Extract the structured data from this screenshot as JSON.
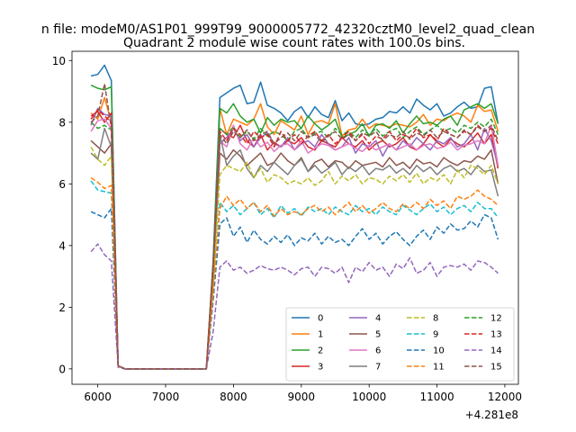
{
  "chart_data": {
    "type": "line",
    "suptitle": "n file: modeM0/AS1P01_999T99_9000005772_42320cztM0_level2_quad_clean",
    "title": "Quadrant 2 module wise count rates with 100.0s bins.",
    "xlabel": "",
    "ylabel": "",
    "offset_label": "+4.281e8",
    "xlim": [
      5620,
      12200
    ],
    "ylim": [
      -0.5,
      10.3
    ],
    "xticks": [
      6000,
      7000,
      8000,
      9000,
      10000,
      11000,
      12000
    ],
    "yticks": [
      0,
      2,
      4,
      6,
      8,
      10
    ],
    "x": [
      5900,
      6000,
      6100,
      6200,
      6300,
      6400,
      6500,
      6600,
      6700,
      6800,
      6900,
      7000,
      7100,
      7200,
      7300,
      7400,
      7500,
      7600,
      7700,
      7800,
      7900,
      8000,
      8100,
      8200,
      8300,
      8400,
      8500,
      8600,
      8700,
      8800,
      8900,
      9000,
      9100,
      9200,
      9300,
      9400,
      9500,
      9600,
      9700,
      9800,
      9900,
      10000,
      10100,
      10200,
      10300,
      10400,
      10500,
      10600,
      10700,
      10800,
      10900,
      11000,
      11100,
      11200,
      11300,
      11400,
      11500,
      11600,
      11700,
      11800,
      11900
    ],
    "legend_position": "lower right",
    "series": [
      {
        "name": "0",
        "color": "#1f77b4",
        "dash": "solid",
        "values": [
          9.5,
          9.55,
          9.85,
          9.35,
          0.1,
          0,
          0,
          0,
          0,
          0,
          0,
          0,
          0,
          0,
          0,
          0,
          0,
          0,
          3.5,
          8.8,
          8.95,
          9.1,
          9.2,
          8.6,
          8.65,
          9.3,
          8.55,
          8.45,
          8.3,
          8.05,
          8.35,
          8.5,
          8.15,
          8.5,
          8.25,
          8.15,
          8.7,
          8.05,
          8.3,
          7.95,
          7.9,
          7.95,
          8.1,
          8.15,
          8.35,
          8.3,
          8.5,
          8.3,
          8.75,
          8.55,
          8.4,
          8.6,
          8.2,
          8.3,
          8.5,
          8.65,
          8.45,
          8.5,
          9.1,
          9.15,
          7.95
        ]
      },
      {
        "name": "1",
        "color": "#ff7f0e",
        "dash": "solid",
        "values": [
          8.3,
          8.1,
          8.8,
          8.0,
          0.1,
          0,
          0,
          0,
          0,
          0,
          0,
          0,
          0,
          0,
          0,
          0,
          0,
          0,
          3.2,
          8.45,
          7.6,
          8.1,
          8.0,
          7.9,
          8.1,
          8.6,
          7.85,
          7.6,
          8.05,
          7.9,
          7.75,
          8.2,
          7.6,
          8.0,
          8.05,
          7.95,
          8.6,
          7.55,
          7.75,
          7.8,
          8.1,
          7.8,
          7.95,
          7.9,
          7.85,
          7.95,
          7.9,
          7.85,
          8.0,
          8.25,
          7.9,
          8.1,
          8.05,
          8.2,
          8.3,
          8.2,
          8.0,
          8.55,
          8.35,
          8.4,
          7.7
        ]
      },
      {
        "name": "2",
        "color": "#2ca02c",
        "dash": "solid",
        "values": [
          9.2,
          9.1,
          9.05,
          9.15,
          0.1,
          0,
          0,
          0,
          0,
          0,
          0,
          0,
          0,
          0,
          0,
          0,
          0,
          0,
          3.4,
          8.45,
          8.3,
          8.6,
          8.2,
          8.0,
          8.1,
          7.65,
          8.15,
          7.9,
          8.1,
          8.0,
          8.05,
          7.8,
          8.2,
          7.95,
          7.75,
          7.9,
          8.1,
          7.5,
          7.6,
          7.7,
          7.95,
          7.55,
          7.9,
          7.95,
          7.8,
          8.05,
          7.65,
          7.95,
          8.2,
          7.95,
          8.0,
          7.9,
          8.1,
          8.2,
          7.9,
          8.4,
          8.5,
          8.6,
          8.45,
          8.6,
          7.95
        ]
      },
      {
        "name": "3",
        "color": "#d62728",
        "dash": "solid",
        "values": [
          8.2,
          8.35,
          8.0,
          8.3,
          0.1,
          0,
          0,
          0,
          0,
          0,
          0,
          0,
          0,
          0,
          0,
          0,
          0,
          0,
          3.0,
          7.8,
          7.6,
          7.5,
          7.9,
          7.4,
          7.2,
          7.6,
          7.1,
          7.35,
          7.2,
          7.4,
          7.3,
          7.5,
          7.2,
          7.1,
          7.4,
          7.3,
          7.2,
          7.5,
          7.3,
          7.2,
          7.4,
          7.1,
          7.3,
          7.4,
          7.2,
          7.3,
          7.5,
          7.2,
          7.1,
          7.3,
          7.6,
          7.35,
          7.2,
          7.45,
          7.3,
          7.2,
          7.4,
          7.65,
          7.3,
          7.6,
          6.5
        ]
      },
      {
        "name": "4",
        "color": "#9467bd",
        "dash": "solid",
        "values": [
          7.9,
          8.45,
          8.25,
          8.2,
          0.1,
          0,
          0,
          0,
          0,
          0,
          0,
          0,
          0,
          0,
          0,
          0,
          0,
          0,
          3.1,
          7.3,
          7.5,
          7.8,
          7.4,
          7.6,
          7.2,
          7.5,
          7.65,
          7.3,
          7.2,
          7.5,
          7.1,
          7.3,
          7.4,
          7.2,
          7.6,
          7.3,
          7.1,
          7.2,
          7.5,
          7.0,
          7.3,
          7.2,
          7.4,
          6.9,
          7.3,
          7.1,
          7.4,
          7.2,
          7.5,
          7.3,
          7.1,
          7.4,
          7.3,
          7.5,
          7.2,
          7.3,
          7.6,
          7.1,
          7.8,
          7.4,
          6.6
        ]
      },
      {
        "name": "5",
        "color": "#8c564b",
        "dash": "solid",
        "values": [
          7.4,
          7.2,
          7.0,
          7.3,
          0.1,
          0,
          0,
          0,
          0,
          0,
          0,
          0,
          0,
          0,
          0,
          0,
          0,
          0,
          2.9,
          7.0,
          6.8,
          7.1,
          6.9,
          6.6,
          6.8,
          7.0,
          6.6,
          6.7,
          7.0,
          6.75,
          6.6,
          6.85,
          6.4,
          6.7,
          6.8,
          6.55,
          6.75,
          6.7,
          6.5,
          6.75,
          6.6,
          6.65,
          6.7,
          6.55,
          6.85,
          6.6,
          6.7,
          6.5,
          6.8,
          6.65,
          6.7,
          6.55,
          6.85,
          6.7,
          6.6,
          6.75,
          6.7,
          6.9,
          6.8,
          7.1,
          6.0
        ]
      },
      {
        "name": "6",
        "color": "#e377c2",
        "dash": "solid",
        "values": [
          7.7,
          8.05,
          8.1,
          7.8,
          0.1,
          0,
          0,
          0,
          0,
          0,
          0,
          0,
          0,
          0,
          0,
          0,
          0,
          0,
          3.0,
          7.4,
          7.2,
          7.9,
          7.3,
          7.1,
          7.5,
          7.2,
          7.35,
          7.05,
          7.25,
          7.3,
          7.1,
          7.4,
          7.0,
          7.15,
          7.3,
          7.25,
          7.1,
          7.2,
          7.3,
          7.15,
          7.05,
          7.25,
          7.1,
          7.2,
          7.3,
          7.1,
          7.2,
          7.3,
          7.1,
          7.25,
          7.3,
          7.15,
          7.2,
          7.35,
          7.1,
          7.25,
          7.3,
          7.4,
          7.3,
          7.9,
          6.6
        ]
      },
      {
        "name": "7",
        "color": "#7f7f7f",
        "dash": "solid",
        "values": [
          7.0,
          6.8,
          7.8,
          7.2,
          0.1,
          0,
          0,
          0,
          0,
          0,
          0,
          0,
          0,
          0,
          0,
          0,
          0,
          0,
          2.8,
          7.6,
          6.6,
          6.9,
          7.1,
          6.5,
          6.2,
          6.6,
          6.4,
          6.7,
          6.5,
          6.3,
          6.6,
          6.8,
          6.4,
          6.6,
          6.35,
          6.5,
          6.7,
          6.3,
          6.55,
          6.4,
          6.6,
          6.3,
          6.5,
          6.45,
          6.6,
          6.35,
          6.5,
          6.3,
          6.6,
          6.4,
          6.55,
          6.3,
          6.5,
          6.6,
          6.4,
          6.5,
          6.3,
          6.6,
          6.4,
          6.45,
          5.6
        ]
      },
      {
        "name": "8",
        "color": "#bcbd22",
        "dash": "dashed",
        "values": [
          7.2,
          6.8,
          6.6,
          6.9,
          0.1,
          0,
          0,
          0,
          0,
          0,
          0,
          0,
          0,
          0,
          0,
          0,
          0,
          0,
          2.6,
          6.3,
          6.6,
          6.5,
          6.4,
          6.7,
          6.2,
          6.5,
          6.05,
          6.3,
          6.2,
          6.0,
          6.1,
          6.0,
          6.2,
          5.95,
          6.1,
          6.4,
          6.0,
          6.25,
          6.1,
          6.3,
          6.0,
          6.2,
          6.15,
          6.0,
          6.25,
          6.1,
          6.3,
          6.05,
          6.35,
          6.0,
          6.2,
          6.1,
          6.3,
          6.0,
          6.45,
          6.2,
          6.6,
          6.5,
          6.3,
          6.6,
          6.0
        ]
      },
      {
        "name": "9",
        "color": "#17becf",
        "dash": "dashed",
        "values": [
          6.1,
          5.8,
          5.75,
          5.7,
          0.1,
          0,
          0,
          0,
          0,
          0,
          0,
          0,
          0,
          0,
          0,
          0,
          0,
          0,
          2.4,
          5.4,
          5.1,
          5.3,
          5.0,
          5.2,
          5.4,
          5.0,
          5.2,
          4.9,
          5.3,
          5.05,
          5.2,
          4.95,
          5.25,
          5.1,
          5.2,
          5.0,
          5.25,
          5.1,
          5.0,
          5.3,
          5.1,
          5.2,
          5.0,
          5.25,
          5.1,
          5.0,
          5.3,
          5.15,
          5.0,
          5.2,
          5.35,
          5.1,
          5.25,
          5.0,
          5.2,
          5.3,
          5.1,
          5.4,
          5.2,
          5.2,
          4.9
        ]
      },
      {
        "name": "10",
        "color": "#1f77b4",
        "dash": "dashed",
        "values": [
          5.1,
          5.0,
          4.9,
          5.2,
          0.1,
          0,
          0,
          0,
          0,
          0,
          0,
          0,
          0,
          0,
          0,
          0,
          0,
          0,
          2.2,
          4.7,
          4.9,
          4.3,
          4.6,
          4.1,
          4.5,
          4.2,
          4.05,
          4.3,
          4.1,
          4.35,
          4.0,
          4.25,
          4.15,
          4.4,
          4.05,
          4.3,
          4.1,
          4.2,
          4.0,
          4.3,
          4.55,
          4.2,
          4.4,
          4.05,
          4.3,
          4.45,
          4.2,
          4.0,
          4.3,
          4.5,
          4.2,
          4.6,
          4.4,
          4.7,
          4.5,
          4.55,
          4.8,
          4.6,
          5.0,
          4.9,
          4.2
        ]
      },
      {
        "name": "11",
        "color": "#ff7f0e",
        "dash": "dashed",
        "values": [
          6.2,
          6.05,
          5.85,
          5.95,
          0.1,
          0,
          0,
          0,
          0,
          0,
          0,
          0,
          0,
          0,
          0,
          0,
          0,
          0,
          2.5,
          5.2,
          5.6,
          5.3,
          5.5,
          5.2,
          5.4,
          5.1,
          5.3,
          4.95,
          5.2,
          5.0,
          5.1,
          5.0,
          5.2,
          5.3,
          5.1,
          5.25,
          5.0,
          5.2,
          5.4,
          5.1,
          5.3,
          5.05,
          5.2,
          5.4,
          5.2,
          5.1,
          5.35,
          5.2,
          5.4,
          5.2,
          5.5,
          5.3,
          5.45,
          5.2,
          5.6,
          5.5,
          5.6,
          5.8,
          5.6,
          5.5,
          5.3
        ]
      },
      {
        "name": "12",
        "color": "#2ca02c",
        "dash": "dashed",
        "values": [
          8.0,
          7.8,
          7.9,
          7.75,
          0.1,
          0,
          0,
          0,
          0,
          0,
          0,
          0,
          0,
          0,
          0,
          0,
          0,
          0,
          3.3,
          7.8,
          7.6,
          7.85,
          7.5,
          7.7,
          7.45,
          7.8,
          7.55,
          7.7,
          7.6,
          7.4,
          7.7,
          7.8,
          7.5,
          7.65,
          7.7,
          7.5,
          7.8,
          7.6,
          7.7,
          7.5,
          7.75,
          7.6,
          7.8,
          7.55,
          7.7,
          7.8,
          7.5,
          7.7,
          7.85,
          7.6,
          7.75,
          7.9,
          7.7,
          7.8,
          7.65,
          7.9,
          7.8,
          8.0,
          7.85,
          8.1,
          7.6
        ]
      },
      {
        "name": "13",
        "color": "#d62728",
        "dash": "dashed",
        "values": [
          8.1,
          8.4,
          8.2,
          8.0,
          0.1,
          0,
          0,
          0,
          0,
          0,
          0,
          0,
          0,
          0,
          0,
          0,
          0,
          0,
          3.2,
          7.7,
          7.4,
          7.8,
          7.6,
          7.3,
          7.7,
          7.5,
          7.6,
          7.2,
          7.7,
          7.4,
          7.6,
          7.3,
          7.55,
          7.7,
          7.4,
          7.6,
          7.3,
          7.5,
          7.7,
          7.4,
          7.6,
          7.3,
          7.55,
          7.45,
          7.7,
          7.4,
          7.6,
          7.5,
          7.8,
          7.5,
          7.6,
          7.4,
          7.8,
          7.6,
          7.5,
          7.7,
          7.6,
          7.9,
          7.7,
          7.8,
          7.3
        ]
      },
      {
        "name": "14",
        "color": "#9467bd",
        "dash": "dashed",
        "values": [
          3.8,
          4.05,
          3.7,
          3.5,
          0.05,
          0,
          0,
          0,
          0,
          0,
          0,
          0,
          0,
          0,
          0,
          0,
          0,
          0,
          1.2,
          3.3,
          3.5,
          3.2,
          3.3,
          3.1,
          3.2,
          3.35,
          3.25,
          3.2,
          3.3,
          3.2,
          3.05,
          3.25,
          3.3,
          3.0,
          3.3,
          3.25,
          3.1,
          3.3,
          2.8,
          3.3,
          3.15,
          3.45,
          3.2,
          3.3,
          3.0,
          3.4,
          3.25,
          3.6,
          3.1,
          3.2,
          3.45,
          3.0,
          3.3,
          3.35,
          3.3,
          3.4,
          3.2,
          3.5,
          3.45,
          3.3,
          3.1
        ]
      },
      {
        "name": "15",
        "color": "#8c564b",
        "dash": "dashed",
        "values": [
          8.0,
          8.2,
          9.25,
          7.8,
          0.1,
          0,
          0,
          0,
          0,
          0,
          0,
          0,
          0,
          0,
          0,
          0,
          0,
          0,
          3.4,
          7.6,
          7.3,
          7.7,
          7.5,
          7.75,
          7.4,
          7.6,
          7.7,
          7.3,
          7.5,
          7.65,
          7.4,
          7.7,
          7.5,
          7.6,
          7.35,
          7.55,
          7.7,
          7.45,
          7.6,
          7.4,
          7.65,
          7.55,
          7.7,
          7.4,
          7.6,
          7.5,
          7.7,
          7.45,
          7.65,
          7.55,
          7.75,
          7.5,
          7.7,
          7.6,
          7.5,
          7.75,
          7.6,
          7.85,
          7.7,
          7.9,
          7.4
        ]
      }
    ]
  }
}
